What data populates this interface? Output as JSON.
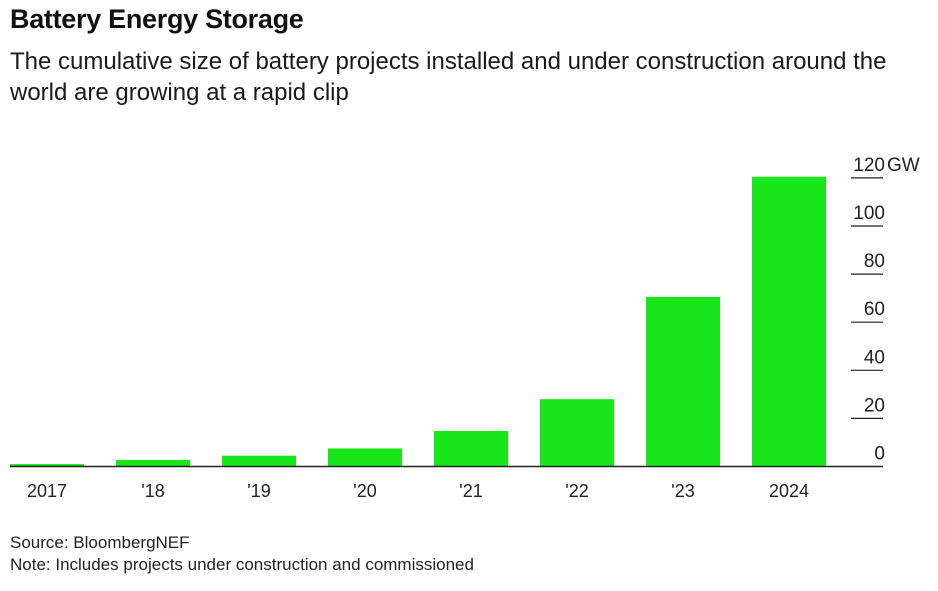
{
  "title": "Battery Energy Storage",
  "subtitle": "The cumulative size of battery projects installed and under construction around the world are growing at a rapid clip",
  "source": "Source: BloombergNEF",
  "note": "Note: Includes projects under construction and commissioned",
  "colors": {
    "bar": "#19e619",
    "axis": "#222222",
    "tick": "#222222"
  },
  "chart_data": {
    "type": "bar",
    "categories": [
      "2017",
      "'18",
      "'19",
      "'20",
      "'21",
      "'22",
      "'23",
      "2024"
    ],
    "values": [
      1,
      2.7,
      4.5,
      7.5,
      14.8,
      28,
      70.5,
      120.5
    ],
    "yticks": [
      0,
      20,
      40,
      60,
      80,
      100,
      120
    ],
    "ytick_labels": [
      "0",
      "20",
      "40",
      "60",
      "80",
      "100",
      "120"
    ],
    "yunit": "GW",
    "ylim": [
      0,
      125
    ],
    "y_axis_position": "right",
    "grid": false,
    "legend": "none"
  }
}
